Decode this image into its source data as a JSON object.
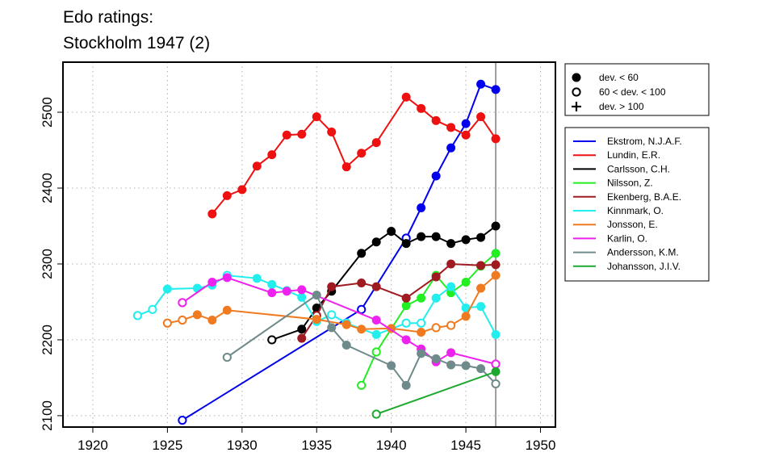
{
  "chart_data": {
    "type": "line",
    "title": "Edo ratings:",
    "subtitle": "Stockholm 1947 (2)",
    "xlabel": "",
    "ylabel": "",
    "xlim": [
      1918,
      1951
    ],
    "ylim": [
      2085,
      2566
    ],
    "x_ticks": [
      1920,
      1925,
      1930,
      1935,
      1940,
      1945,
      1950
    ],
    "y_ticks": [
      2100,
      2200,
      2300,
      2400,
      2500
    ],
    "grid": true,
    "reference_line_x": 1947,
    "reference_line_color": "#808080",
    "marker_legend": {
      "placement": "top-right outside",
      "items": [
        {
          "marker": "filled",
          "label": "dev. < 60"
        },
        {
          "marker": "open",
          "label": "60 < dev. < 100"
        },
        {
          "marker": "plus",
          "label": "dev. > 100"
        }
      ]
    },
    "legend_placement": "right outside",
    "series": [
      {
        "name": "Ekstrom, N.J.A.F.",
        "color": "#0000ee",
        "points": [
          [
            1926,
            2094,
            "o"
          ],
          [
            1938,
            2240,
            "o"
          ],
          [
            1941,
            2334,
            "o"
          ],
          [
            1942,
            2374,
            "f"
          ],
          [
            1943,
            2416,
            "f"
          ],
          [
            1944,
            2453,
            "f"
          ],
          [
            1945,
            2485,
            "f"
          ],
          [
            1946,
            2537,
            "f"
          ],
          [
            1947,
            2530,
            "f"
          ]
        ]
      },
      {
        "name": "Lundin, E.R.",
        "color": "#ee1111",
        "points": [
          [
            1928,
            2366,
            "f"
          ],
          [
            1929,
            2390,
            "f"
          ],
          [
            1930,
            2398,
            "f"
          ],
          [
            1931,
            2429,
            "f"
          ],
          [
            1932,
            2444,
            "f"
          ],
          [
            1933,
            2470,
            "f"
          ],
          [
            1934,
            2471,
            "f"
          ],
          [
            1935,
            2494,
            "f"
          ],
          [
            1936,
            2474,
            "f"
          ],
          [
            1937,
            2428,
            "f"
          ],
          [
            1938,
            2446,
            "f"
          ],
          [
            1939,
            2460,
            "f"
          ],
          [
            1941,
            2520,
            "f"
          ],
          [
            1942,
            2505,
            "f"
          ],
          [
            1943,
            2489,
            "f"
          ],
          [
            1944,
            2480,
            "f"
          ],
          [
            1945,
            2470,
            "f"
          ],
          [
            1946,
            2494,
            "f"
          ],
          [
            1947,
            2465,
            "f"
          ]
        ]
      },
      {
        "name": "Carlsson, C.H.",
        "color": "#000000",
        "points": [
          [
            1932,
            2200,
            "o"
          ],
          [
            1934,
            2214,
            "f"
          ],
          [
            1935,
            2242,
            "f"
          ],
          [
            1936,
            2264,
            "f"
          ],
          [
            1938,
            2314,
            "f"
          ],
          [
            1939,
            2329,
            "f"
          ],
          [
            1940,
            2343,
            "f"
          ],
          [
            1941,
            2327,
            "f"
          ],
          [
            1942,
            2336,
            "f"
          ],
          [
            1943,
            2336,
            "f"
          ],
          [
            1944,
            2327,
            "f"
          ],
          [
            1945,
            2332,
            "f"
          ],
          [
            1946,
            2335,
            "f"
          ],
          [
            1947,
            2350,
            "f"
          ]
        ]
      },
      {
        "name": "Nilsson, Z.",
        "color": "#22ee22",
        "points": [
          [
            1938,
            2140,
            "o"
          ],
          [
            1939,
            2184,
            "o"
          ],
          [
            1941,
            2245,
            "f"
          ],
          [
            1942,
            2255,
            "f"
          ],
          [
            1943,
            2285,
            "f"
          ],
          [
            1944,
            2262,
            "f"
          ],
          [
            1945,
            2276,
            "f"
          ],
          [
            1946,
            2297,
            "f"
          ],
          [
            1947,
            2314,
            "f"
          ]
        ]
      },
      {
        "name": "Ekenberg, B.A.E.",
        "color": "#a01a22",
        "points": [
          [
            1934,
            2202,
            "f"
          ],
          [
            1935,
            2232,
            "o"
          ],
          [
            1936,
            2270,
            "f"
          ],
          [
            1938,
            2275,
            "f"
          ],
          [
            1939,
            2270,
            "f"
          ],
          [
            1941,
            2255,
            "f"
          ],
          [
            1943,
            2283,
            "f"
          ],
          [
            1944,
            2300,
            "f"
          ],
          [
            1946,
            2298,
            "f"
          ],
          [
            1947,
            2299,
            "f"
          ]
        ]
      },
      {
        "name": "Kinnmark, O.",
        "color": "#22eeee",
        "points": [
          [
            1923,
            2232,
            "o"
          ],
          [
            1924,
            2240,
            "o"
          ],
          [
            1925,
            2267,
            "f"
          ],
          [
            1927,
            2268,
            "f"
          ],
          [
            1928,
            2272,
            "f"
          ],
          [
            1929,
            2285,
            "o"
          ],
          [
            1931,
            2281,
            "f"
          ],
          [
            1932,
            2273,
            "f"
          ],
          [
            1933,
            2265,
            "f"
          ],
          [
            1934,
            2256,
            "f"
          ],
          [
            1935,
            2224,
            "f"
          ],
          [
            1936,
            2233,
            "o"
          ],
          [
            1937,
            2222,
            "o"
          ],
          [
            1939,
            2207,
            "f"
          ],
          [
            1941,
            2222,
            "o"
          ],
          [
            1942,
            2222,
            "o"
          ],
          [
            1943,
            2255,
            "f"
          ],
          [
            1944,
            2270,
            "f"
          ],
          [
            1945,
            2242,
            "f"
          ],
          [
            1946,
            2244,
            "f"
          ],
          [
            1947,
            2207,
            "f"
          ]
        ]
      },
      {
        "name": "Jonsson, E.",
        "color": "#f07a20",
        "points": [
          [
            1925,
            2222,
            "o"
          ],
          [
            1926,
            2226,
            "o"
          ],
          [
            1927,
            2233,
            "f"
          ],
          [
            1928,
            2226,
            "f"
          ],
          [
            1929,
            2239,
            "f"
          ],
          [
            1935,
            2227,
            "f"
          ],
          [
            1937,
            2220,
            "f"
          ],
          [
            1938,
            2214,
            "f"
          ],
          [
            1940,
            2215,
            "f"
          ],
          [
            1942,
            2210,
            "f"
          ],
          [
            1943,
            2216,
            "o"
          ],
          [
            1944,
            2219,
            "o"
          ],
          [
            1945,
            2231,
            "f"
          ],
          [
            1946,
            2268,
            "f"
          ],
          [
            1947,
            2285,
            "f"
          ]
        ]
      },
      {
        "name": "Karlin, O.",
        "color": "#ee22ee",
        "points": [
          [
            1926,
            2249,
            "o"
          ],
          [
            1928,
            2276,
            "f"
          ],
          [
            1929,
            2282,
            "f"
          ],
          [
            1932,
            2262,
            "f"
          ],
          [
            1933,
            2264,
            "f"
          ],
          [
            1934,
            2266,
            "f"
          ],
          [
            1939,
            2226,
            "f"
          ],
          [
            1941,
            2200,
            "f"
          ],
          [
            1942,
            2188,
            "f"
          ],
          [
            1943,
            2171,
            "f"
          ],
          [
            1944,
            2183,
            "f"
          ],
          [
            1947,
            2168,
            "o"
          ]
        ]
      },
      {
        "name": "Andersson, K.M.",
        "color": "#6e8a8a",
        "points": [
          [
            1929,
            2177,
            "o"
          ],
          [
            1935,
            2259,
            "f"
          ],
          [
            1936,
            2216,
            "f"
          ],
          [
            1937,
            2193,
            "f"
          ],
          [
            1940,
            2166,
            "f"
          ],
          [
            1941,
            2140,
            "f"
          ],
          [
            1942,
            2182,
            "f"
          ],
          [
            1943,
            2175,
            "f"
          ],
          [
            1944,
            2167,
            "f"
          ],
          [
            1945,
            2166,
            "f"
          ],
          [
            1946,
            2162,
            "f"
          ],
          [
            1947,
            2142,
            "o"
          ]
        ]
      },
      {
        "name": "Johansson, J.I.V.",
        "color": "#1fa830",
        "points": [
          [
            1939,
            2102,
            "o"
          ],
          [
            1947,
            2158,
            "f"
          ]
        ]
      }
    ]
  }
}
